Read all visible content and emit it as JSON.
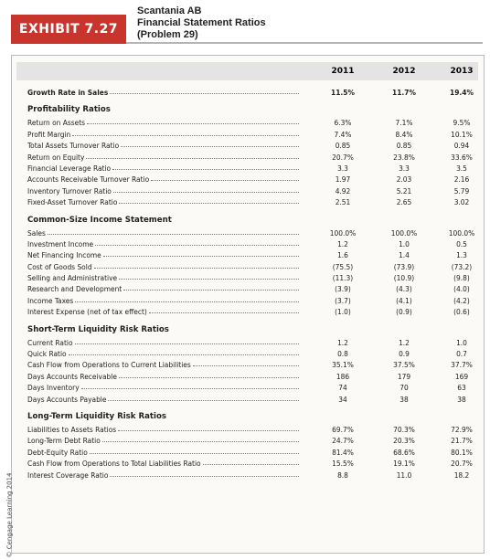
{
  "header": {
    "exhibit": "EXHIBIT 7.27",
    "title_lines": [
      "Scantania AB",
      "Financial Statement Ratios",
      "(Problem 29)"
    ]
  },
  "table": {
    "columns": [
      "2011",
      "2012",
      "2013"
    ],
    "sections": [
      {
        "rows": [
          {
            "label": "Growth Rate in Sales",
            "values": [
              "11.5%",
              "11.7%",
              "19.4%"
            ]
          }
        ]
      },
      {
        "title": "Profitability Ratios",
        "rows": [
          {
            "label": "Return on Assets",
            "values": [
              "6.3%",
              "7.1%",
              "9.5%"
            ]
          },
          {
            "label": "Profit Margin",
            "values": [
              "7.4%",
              "8.4%",
              "10.1%"
            ]
          },
          {
            "label": "Total Assets Turnover Ratio",
            "values": [
              "0.85",
              "0.85",
              "0.94"
            ]
          },
          {
            "label": "Return on Equity",
            "values": [
              "20.7%",
              "23.8%",
              "33.6%"
            ]
          },
          {
            "label": "Financial Leverage Ratio",
            "values": [
              "3.3",
              "3.3",
              "3.5"
            ]
          },
          {
            "label": "Accounts Receivable Turnover Ratio",
            "values": [
              "1.97",
              "2.03",
              "2.16"
            ]
          },
          {
            "label": "Inventory Turnover Ratio",
            "values": [
              "4.92",
              "5.21",
              "5.79"
            ]
          },
          {
            "label": "Fixed-Asset Turnover Ratio",
            "values": [
              "2.51",
              "2.65",
              "3.02"
            ]
          }
        ]
      },
      {
        "title": "Common-Size Income Statement",
        "rows": [
          {
            "label": "Sales",
            "values": [
              "100.0%",
              "100.0%",
              "100.0%"
            ]
          },
          {
            "label": "Investment Income",
            "values": [
              "1.2",
              "1.0",
              "0.5"
            ]
          },
          {
            "label": "Net Financing Income",
            "values": [
              "1.6",
              "1.4",
              "1.3"
            ]
          },
          {
            "label": "Cost of Goods Sold",
            "values": [
              "(75.5)",
              "(73.9)",
              "(73.2)"
            ]
          },
          {
            "label": "Selling and Administrative",
            "values": [
              "(11.3)",
              "(10.9)",
              "(9.8)"
            ]
          },
          {
            "label": "Research and Development",
            "values": [
              "(3.9)",
              "(4.3)",
              "(4.0)"
            ]
          },
          {
            "label": "Income Taxes",
            "values": [
              "(3.7)",
              "(4.1)",
              "(4.2)"
            ]
          },
          {
            "label": "Interest Expense (net of tax effect)",
            "values": [
              "(1.0)",
              "(0.9)",
              "(0.6)"
            ]
          }
        ]
      },
      {
        "title": "Short-Term Liquidity Risk Ratios",
        "rows": [
          {
            "label": "Current Ratio",
            "values": [
              "1.2",
              "1.2",
              "1.0"
            ]
          },
          {
            "label": "Quick Ratio",
            "values": [
              "0.8",
              "0.9",
              "0.7"
            ]
          },
          {
            "label": "Cash Flow from Operations to Current Liabilities",
            "values": [
              "35.1%",
              "37.5%",
              "37.7%"
            ]
          },
          {
            "label": "Days Accounts Receivable",
            "values": [
              "186",
              "179",
              "169"
            ]
          },
          {
            "label": "Days Inventory",
            "values": [
              "74",
              "70",
              "63"
            ]
          },
          {
            "label": "Days Accounts Payable",
            "values": [
              "34",
              "38",
              "38"
            ]
          }
        ]
      },
      {
        "title": "Long-Term Liquidity Risk Ratios",
        "rows": [
          {
            "label": "Liabilities to Assets Ratios",
            "values": [
              "69.7%",
              "70.3%",
              "72.9%"
            ]
          },
          {
            "label": "Long-Term Debt Ratio",
            "values": [
              "24.7%",
              "20.3%",
              "21.7%"
            ]
          },
          {
            "label": "Debt-Equity Ratio",
            "values": [
              "81.4%",
              "68.6%",
              "80.1%"
            ]
          },
          {
            "label": "Cash Flow from Operations to Total Liabilities Ratio",
            "values": [
              "15.5%",
              "19.1%",
              "20.7%"
            ]
          },
          {
            "label": "Interest Coverage Ratio",
            "values": [
              "8.8",
              "11.0",
              "18.2"
            ]
          }
        ]
      }
    ]
  },
  "credit": "© Cengage Learning 2014"
}
